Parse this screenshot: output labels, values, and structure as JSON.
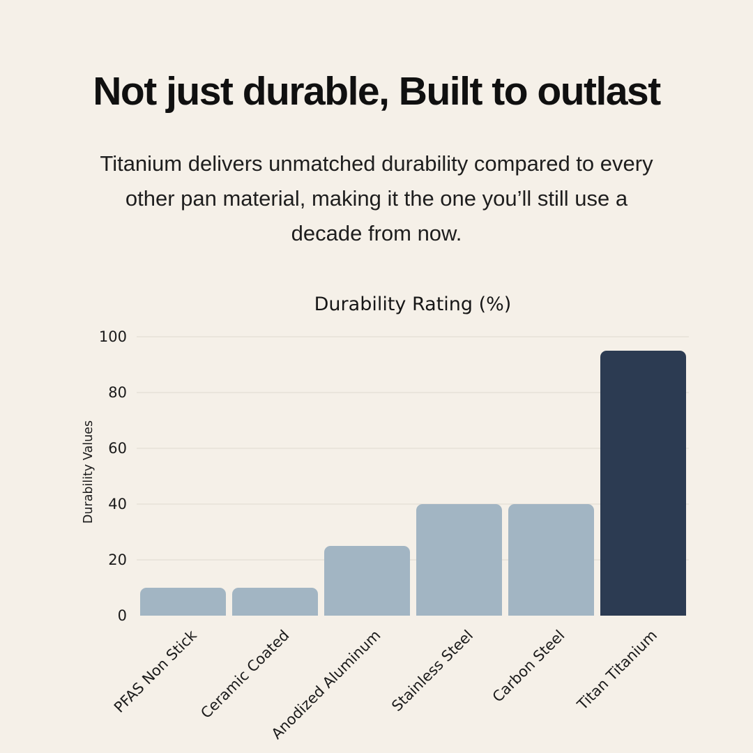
{
  "header": {
    "title": "Not just durable, Built to outlast",
    "subtitle_lines": [
      "Titanium delivers unmatched durability compared to every",
      "other pan material, making it the one you’ll still use a",
      "decade from now."
    ]
  },
  "chart_data": {
    "type": "bar",
    "title": "Durability Rating (%)",
    "xlabel": "",
    "ylabel": "Durability Values",
    "categories": [
      "PFAS Non Stick",
      "Ceramic Coated",
      "Anodized Aluminum",
      "Stainless Steel",
      "Carbon Steel",
      "Titan Titanium"
    ],
    "values": [
      10,
      10,
      25,
      40,
      40,
      95
    ],
    "ylim": [
      0,
      100
    ],
    "yticks": [
      0,
      20,
      40,
      60,
      80,
      100
    ],
    "grid": "horizontal",
    "legend": "none",
    "x_tick_rotation_deg": 45,
    "highlight_index": 5,
    "bar_color": "#a2b5c3",
    "highlight_color": "#2c3b52",
    "background_color": "#f5f0e8",
    "gridline_color": "#eae5dc",
    "text_color": "#1a1a1a"
  }
}
